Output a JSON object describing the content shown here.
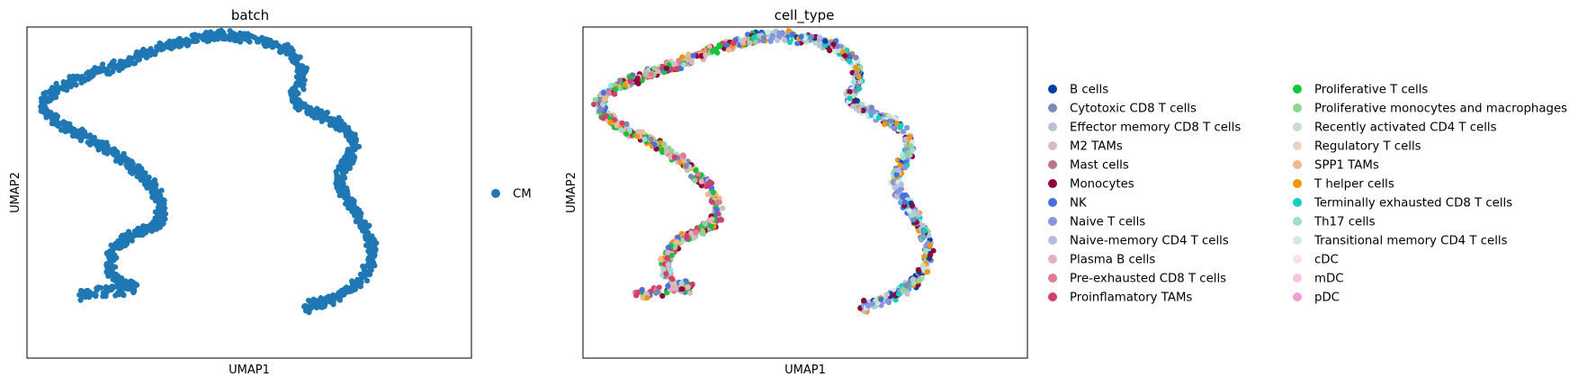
{
  "chart_data": [
    {
      "type": "scatter",
      "title": "batch",
      "xlabel": "UMAP1",
      "ylabel": "UMAP2",
      "xlim": [
        0,
        100
      ],
      "ylim": [
        0,
        100
      ],
      "grid": false,
      "ticks": false,
      "legend_placement": "right",
      "series": [
        {
          "name": "CM",
          "color": "#1f77b4"
        }
      ]
    },
    {
      "type": "scatter",
      "title": "cell_type",
      "xlabel": "UMAP1",
      "ylabel": "UMAP2",
      "xlim": [
        0,
        100
      ],
      "ylim": [
        0,
        100
      ],
      "grid": false,
      "ticks": false,
      "legend_placement": "right",
      "series": [
        {
          "name": "B cells",
          "color": "#023fa5"
        },
        {
          "name": "Cytotoxic CD8 T cells",
          "color": "#7d87b9"
        },
        {
          "name": "Effector memory CD8 T cells",
          "color": "#bec1d4"
        },
        {
          "name": "M2 TAMs",
          "color": "#d6bcc0"
        },
        {
          "name": "Mast cells",
          "color": "#bb7784"
        },
        {
          "name": "Monocytes",
          "color": "#8e063b"
        },
        {
          "name": "NK",
          "color": "#4a6fe3"
        },
        {
          "name": "Naive T cells",
          "color": "#8595e1"
        },
        {
          "name": "Naive-memory CD4 T cells",
          "color": "#b5bbe3"
        },
        {
          "name": "Plasma B cells",
          "color": "#e6afb9"
        },
        {
          "name": "Pre-exhausted CD8 T cells",
          "color": "#e07b91"
        },
        {
          "name": "Proinflamatory TAMs",
          "color": "#d33f6a"
        },
        {
          "name": "Proliferative T cells",
          "color": "#11c638"
        },
        {
          "name": "Proliferative monocytes and macrophages",
          "color": "#8dd593"
        },
        {
          "name": "Recently activated CD4 T cells",
          "color": "#c6dec7"
        },
        {
          "name": "Regulatory T cells",
          "color": "#ead3c6"
        },
        {
          "name": "SPP1 TAMs",
          "color": "#f0b98d"
        },
        {
          "name": "T helper cells",
          "color": "#ef9708"
        },
        {
          "name": "Terminally exhausted CD8 T cells",
          "color": "#0fcfc0"
        },
        {
          "name": "Th17 cells",
          "color": "#9cded6"
        },
        {
          "name": "Transitional memory CD4 T cells",
          "color": "#d5eae7"
        },
        {
          "name": "cDC",
          "color": "#f3e1eb"
        },
        {
          "name": "mDC",
          "color": "#f6c4e1"
        },
        {
          "name": "pDC",
          "color": "#f79cd4"
        }
      ]
    }
  ]
}
